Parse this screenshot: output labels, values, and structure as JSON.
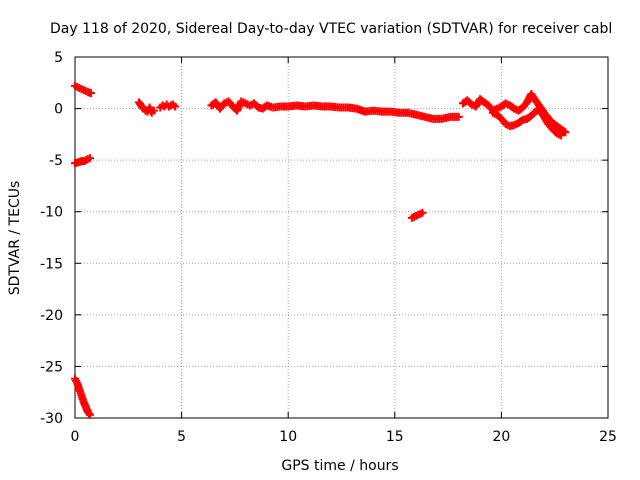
{
  "chart_data": {
    "type": "scatter",
    "title": "Day 118 of 2020, Sidereal Day-to-day VTEC variation (SDTVAR) for receiver cabl",
    "xlabel": "GPS time / hours",
    "ylabel": "SDTVAR / TECUs",
    "xlim": [
      0,
      25
    ],
    "ylim": [
      -30,
      5
    ],
    "xticks": [
      0,
      5,
      10,
      15,
      20,
      25
    ],
    "yticks": [
      -30,
      -25,
      -20,
      -15,
      -10,
      -5,
      0,
      5
    ],
    "grid": true,
    "marker": "plus",
    "color": "#ff0000",
    "series": [
      {
        "name": "seg1",
        "x": [
          0.0,
          0.1,
          0.2,
          0.3,
          0.4,
          0.5,
          0.6,
          0.75
        ],
        "y": [
          2.2,
          2.1,
          2.0,
          1.9,
          1.8,
          1.7,
          1.6,
          1.5
        ]
      },
      {
        "name": "seg2",
        "x": [
          0.0,
          0.15,
          0.3,
          0.45,
          0.6,
          0.7
        ],
        "y": [
          -5.3,
          -5.2,
          -5.1,
          -5.1,
          -4.9,
          -4.8
        ]
      },
      {
        "name": "seg3",
        "x": [
          0.0,
          0.1,
          0.2,
          0.3,
          0.4,
          0.5,
          0.6,
          0.7
        ],
        "y": [
          -26.2,
          -26.6,
          -27.2,
          -27.8,
          -28.4,
          -28.9,
          -29.4,
          -29.7
        ]
      },
      {
        "name": "seg4",
        "x": [
          3.0,
          3.1,
          3.2,
          3.3,
          3.4,
          3.5,
          3.6,
          3.7
        ],
        "y": [
          0.6,
          0.3,
          0.0,
          -0.2,
          -0.3,
          0.1,
          -0.4,
          -0.2
        ]
      },
      {
        "name": "seg5",
        "x": [
          4.0,
          4.1,
          4.2,
          4.3,
          4.4,
          4.5,
          4.6,
          4.7
        ],
        "y": [
          0.1,
          0.3,
          0.2,
          0.4,
          0.2,
          0.3,
          0.4,
          0.2
        ]
      },
      {
        "name": "seg6",
        "x": [
          6.4,
          6.6,
          6.8,
          7.0,
          7.2,
          7.4,
          7.6,
          7.8,
          8.0,
          8.2,
          8.4,
          8.6,
          8.8,
          9.0,
          9.3,
          9.6,
          10.0,
          10.4,
          10.8,
          11.2,
          11.6,
          12.0,
          12.4,
          12.8,
          13.2,
          13.6,
          14.0,
          14.4,
          14.8,
          15.2,
          15.6,
          16.0,
          16.4,
          16.8,
          17.2,
          17.6,
          18.0
        ],
        "y": [
          0.3,
          0.6,
          0.0,
          0.5,
          0.7,
          0.2,
          -0.2,
          0.7,
          0.5,
          0.3,
          0.5,
          0.1,
          0.0,
          0.3,
          0.1,
          0.2,
          0.2,
          0.3,
          0.2,
          0.3,
          0.2,
          0.2,
          0.1,
          0.1,
          0.0,
          -0.3,
          -0.2,
          -0.3,
          -0.3,
          -0.4,
          -0.4,
          -0.6,
          -0.8,
          -1.0,
          -1.0,
          -0.8,
          -0.8
        ]
      },
      {
        "name": "seg7",
        "x": [
          18.2,
          18.4,
          18.6,
          18.8,
          19.0,
          19.2,
          19.4,
          19.6,
          19.8,
          20.0,
          20.2,
          20.4,
          20.6,
          20.8,
          21.0,
          21.2,
          21.4,
          21.6,
          21.8,
          22.0,
          22.2,
          22.4,
          22.6,
          22.8,
          23.0
        ],
        "y": [
          0.5,
          0.8,
          0.4,
          0.2,
          0.9,
          0.6,
          0.3,
          -0.2,
          0.0,
          0.2,
          0.5,
          0.3,
          0.0,
          -0.2,
          0.1,
          0.6,
          1.4,
          0.8,
          0.2,
          -0.4,
          -0.9,
          -1.4,
          -1.7,
          -2.0,
          -2.3
        ]
      },
      {
        "name": "seg8",
        "x": [
          19.6,
          19.8,
          20.0,
          20.2,
          20.4,
          20.6,
          20.8,
          21.0,
          21.2,
          21.4,
          21.6,
          21.8,
          22.0,
          22.2,
          22.4,
          22.6,
          22.8
        ],
        "y": [
          -0.4,
          -0.6,
          -1.0,
          -1.5,
          -1.7,
          -1.6,
          -1.4,
          -1.1,
          -1.0,
          -0.7,
          -0.3,
          -0.1,
          -0.8,
          -1.5,
          -2.0,
          -2.4,
          -2.6
        ]
      },
      {
        "name": "seg9",
        "x": [
          15.8,
          15.9,
          16.0,
          16.1,
          16.2,
          16.3
        ],
        "y": [
          -10.6,
          -10.5,
          -10.4,
          -10.3,
          -10.2,
          -10.1
        ]
      }
    ]
  }
}
